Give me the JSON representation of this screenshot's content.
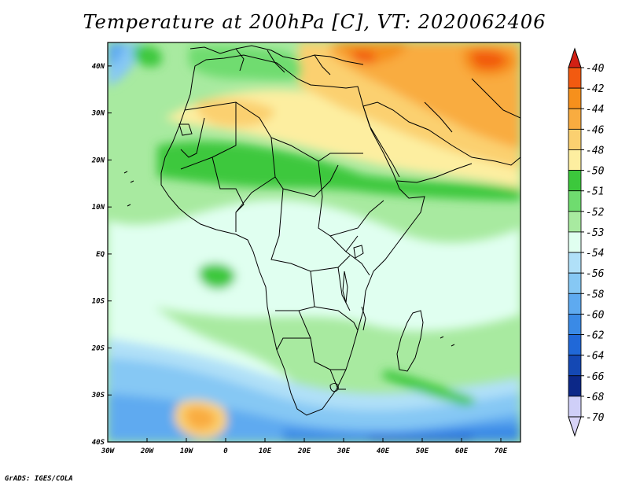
{
  "title": "Temperature at 200hPa [C], VT: 2020062406",
  "credit": "GrADS: IGES/COLA",
  "map": {
    "lon_range": [
      -30,
      75
    ],
    "lat_range": [
      -40,
      45
    ],
    "x_ticks": [
      {
        "lon": -30,
        "label": "30W"
      },
      {
        "lon": -20,
        "label": "20W"
      },
      {
        "lon": -10,
        "label": "10W"
      },
      {
        "lon": 0,
        "label": "0"
      },
      {
        "lon": 10,
        "label": "10E"
      },
      {
        "lon": 20,
        "label": "20E"
      },
      {
        "lon": 30,
        "label": "30E"
      },
      {
        "lon": 40,
        "label": "40E"
      },
      {
        "lon": 50,
        "label": "50E"
      },
      {
        "lon": 60,
        "label": "60E"
      },
      {
        "lon": 70,
        "label": "70E"
      }
    ],
    "y_ticks": [
      {
        "lat": 40,
        "label": "40N"
      },
      {
        "lat": 30,
        "label": "30N"
      },
      {
        "lat": 20,
        "label": "20N"
      },
      {
        "lat": 10,
        "label": "10N"
      },
      {
        "lat": 0,
        "label": "EQ"
      },
      {
        "lat": -10,
        "label": "10S"
      },
      {
        "lat": -20,
        "label": "20S"
      },
      {
        "lat": -30,
        "label": "30S"
      },
      {
        "lat": -40,
        "label": "40S"
      }
    ]
  },
  "colorbar": {
    "levels": [
      {
        "label": "-40",
        "color": "#e81a0c"
      },
      {
        "label": "-42",
        "color": "#f25a10"
      },
      {
        "label": "-44",
        "color": "#f6901c"
      },
      {
        "label": "-46",
        "color": "#f9ac40"
      },
      {
        "label": "-48",
        "color": "#fbd070"
      },
      {
        "label": "-50",
        "color": "#fdeea0"
      },
      {
        "label": "-51",
        "color": "#3cc83c"
      },
      {
        "label": "-52",
        "color": "#6fdc6f"
      },
      {
        "label": "-53",
        "color": "#a8eaa0"
      },
      {
        "label": "-54",
        "color": "#e0fff0"
      },
      {
        "label": "-56",
        "color": "#b0e0f8"
      },
      {
        "label": "-58",
        "color": "#86c8f4"
      },
      {
        "label": "-60",
        "color": "#5eaaf0"
      },
      {
        "label": "-62",
        "color": "#3a8ae6"
      },
      {
        "label": "-64",
        "color": "#2068d8"
      },
      {
        "label": "-66",
        "color": "#1448b4"
      },
      {
        "label": "-68",
        "color": "#0c2888"
      },
      {
        "label": "-70",
        "color": "#cfcff8"
      }
    ],
    "top_cap_color": "#d22014",
    "bottom_cap_color": "#d8d4f8"
  }
}
